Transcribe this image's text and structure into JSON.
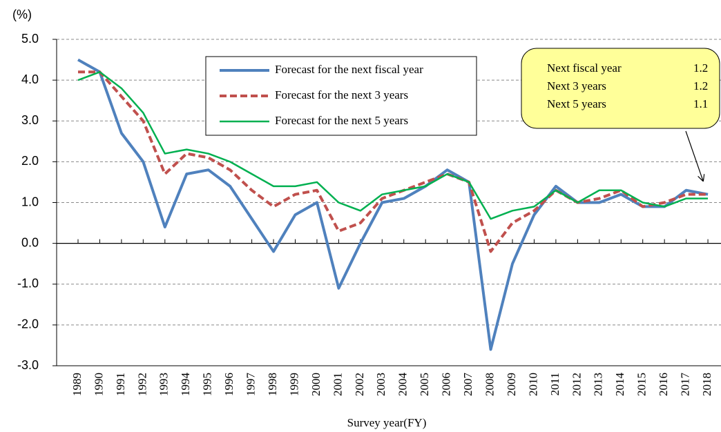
{
  "chart_data": {
    "type": "line",
    "y_unit_label": "(%)",
    "x_label": "Survey year(FY)",
    "categories": [
      "1989",
      "1990",
      "1991",
      "1992",
      "1993",
      "1994",
      "1995",
      "1996",
      "1997",
      "1998",
      "1999",
      "2000",
      "2001",
      "2002",
      "2003",
      "2004",
      "2005",
      "2006",
      "2007",
      "2008",
      "2009",
      "2010",
      "2011",
      "2012",
      "2013",
      "2014",
      "2015",
      "2016",
      "2017",
      "2018"
    ],
    "series": [
      {
        "name": "Forecast for the next fiscal year",
        "color": "#4f81bd",
        "dash": false,
        "values": [
          4.5,
          4.2,
          2.7,
          2.0,
          0.4,
          1.7,
          1.8,
          1.4,
          0.6,
          -0.2,
          0.7,
          1.0,
          -1.1,
          0.0,
          1.0,
          1.1,
          1.4,
          1.8,
          1.5,
          -2.6,
          -0.5,
          0.7,
          1.4,
          1.0,
          1.0,
          1.2,
          0.9,
          0.9,
          1.3,
          1.2
        ]
      },
      {
        "name": "Forecast for the next 3 years",
        "color": "#c0504d",
        "dash": true,
        "values": [
          4.2,
          4.2,
          3.6,
          3.0,
          1.7,
          2.2,
          2.1,
          1.8,
          1.3,
          0.9,
          1.2,
          1.3,
          0.3,
          0.5,
          1.1,
          1.3,
          1.5,
          1.7,
          1.5,
          -0.2,
          0.5,
          0.8,
          1.3,
          1.0,
          1.1,
          1.3,
          0.9,
          1.0,
          1.2,
          1.2
        ]
      },
      {
        "name": "Forecast for the next 5 years",
        "color": "#00b050",
        "dash": false,
        "values": [
          4.0,
          4.2,
          3.8,
          3.2,
          2.2,
          2.3,
          2.2,
          2.0,
          1.7,
          1.4,
          1.4,
          1.5,
          1.0,
          0.8,
          1.2,
          1.3,
          1.4,
          1.7,
          1.5,
          0.6,
          0.8,
          0.9,
          1.3,
          1.0,
          1.3,
          1.3,
          1.0,
          0.9,
          1.1,
          1.1
        ]
      }
    ],
    "ylim": [
      -3,
      5
    ],
    "yticks": [
      {
        "value": -3,
        "label": "-3.0"
      },
      {
        "value": -2,
        "label": "-2.0"
      },
      {
        "value": -1,
        "label": "-1.0"
      },
      {
        "value": 0,
        "label": "0.0"
      },
      {
        "value": 1,
        "label": "1.0"
      },
      {
        "value": 2,
        "label": "2.0"
      },
      {
        "value": 3,
        "label": "3.0"
      },
      {
        "value": 4,
        "label": "4.0"
      },
      {
        "value": 5,
        "label": "5.0"
      }
    ],
    "grid": true,
    "annotation": {
      "rows": [
        {
          "label": "Next fiscal year",
          "value": 1.2
        },
        {
          "label": "Next 3 years",
          "value": 1.2
        },
        {
          "label": "Next 5 years",
          "value": 1.1
        }
      ]
    }
  }
}
